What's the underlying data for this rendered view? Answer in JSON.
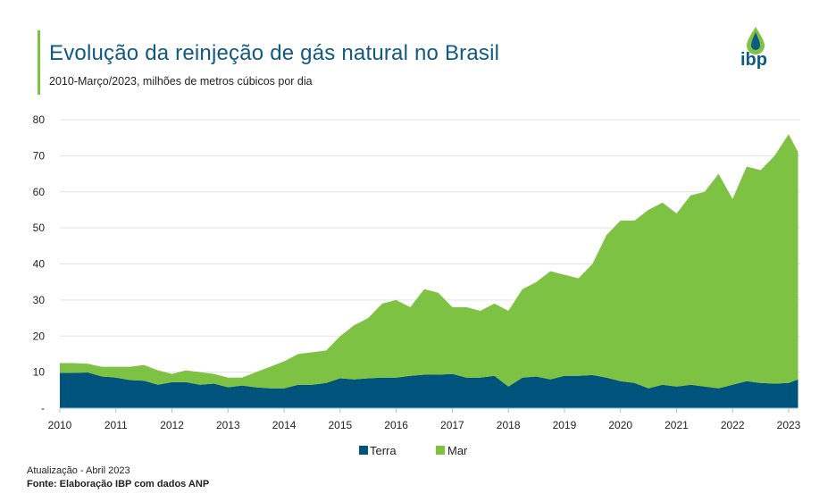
{
  "header": {
    "title": "Evolução da reinjeção de gás natural no Brasil",
    "subtitle": "2010-Março/2023, milhões de metros cúbicos por dia",
    "logo_text": "ibp"
  },
  "footer": {
    "update": "Atualização - Abril 2023",
    "source": "Fonte: Elaboração IBP com dados ANP"
  },
  "colors": {
    "terra": "#00537a",
    "mar": "#7dc242",
    "title": "#0f5a82",
    "accent": "#7dc242"
  },
  "chart_data": {
    "type": "area",
    "stacked": true,
    "title": "",
    "xlabel": "",
    "ylabel": "",
    "ylim": [
      0,
      80
    ],
    "yticks": [
      {
        "v": 0,
        "label": "-"
      },
      {
        "v": 10,
        "label": "10"
      },
      {
        "v": 20,
        "label": "20"
      },
      {
        "v": 30,
        "label": "30"
      },
      {
        "v": 40,
        "label": "40"
      },
      {
        "v": 50,
        "label": "50"
      },
      {
        "v": 60,
        "label": "60"
      },
      {
        "v": 70,
        "label": "70"
      },
      {
        "v": 80,
        "label": "80"
      }
    ],
    "xticks": [
      "2010",
      "2011",
      "2012",
      "2013",
      "2014",
      "2015",
      "2016",
      "2017",
      "2018",
      "2019",
      "2020",
      "2021",
      "2022",
      "2023"
    ],
    "grid": true,
    "legend": "bottom",
    "x": [
      "2010-01",
      "2010-04",
      "2010-07",
      "2010-10",
      "2011-01",
      "2011-04",
      "2011-07",
      "2011-10",
      "2012-01",
      "2012-04",
      "2012-07",
      "2012-10",
      "2013-01",
      "2013-04",
      "2013-07",
      "2013-10",
      "2014-01",
      "2014-04",
      "2014-07",
      "2014-10",
      "2015-01",
      "2015-04",
      "2015-07",
      "2015-10",
      "2016-01",
      "2016-04",
      "2016-07",
      "2016-10",
      "2017-01",
      "2017-04",
      "2017-07",
      "2017-10",
      "2018-01",
      "2018-04",
      "2018-07",
      "2018-10",
      "2019-01",
      "2019-04",
      "2019-07",
      "2019-10",
      "2020-01",
      "2020-04",
      "2020-07",
      "2020-10",
      "2021-01",
      "2021-04",
      "2021-07",
      "2021-10",
      "2022-01",
      "2022-04",
      "2022-07",
      "2022-10",
      "2023-01",
      "2023-03"
    ],
    "series": [
      {
        "name": "Terra",
        "values": [
          9.8,
          9.8,
          9.9,
          8.8,
          8.5,
          7.8,
          7.6,
          6.5,
          7.2,
          7.2,
          6.5,
          6.8,
          5.8,
          6.3,
          5.8,
          5.5,
          5.5,
          6.5,
          6.5,
          7,
          8.3,
          8,
          8.3,
          8.5,
          8.5,
          9,
          9.3,
          9.3,
          9.5,
          8.5,
          8.5,
          9,
          6,
          8.5,
          8.8,
          8,
          9,
          9,
          9.2,
          8.5,
          7.5,
          7,
          5.5,
          6.5,
          6,
          6.5,
          6,
          5.5,
          6.5,
          7.5,
          7,
          6.8,
          7,
          8
        ]
      },
      {
        "name": "Mar",
        "values": [
          2.7,
          2.7,
          2.4,
          2.7,
          3.0,
          3.7,
          4.4,
          4.0,
          2.3,
          3.3,
          3.5,
          2.7,
          2.7,
          2.2,
          4.2,
          6.0,
          7.5,
          8.5,
          9.0,
          9.0,
          11.7,
          15.0,
          16.7,
          20.5,
          21.5,
          19.0,
          23.7,
          22.7,
          18.5,
          19.5,
          18.5,
          20.0,
          21.0,
          24.5,
          26.2,
          30.0,
          28.0,
          27.0,
          30.8,
          39.5,
          44.5,
          45.0,
          49.5,
          50.5,
          48.0,
          52.5,
          54.0,
          59.5,
          51.5,
          59.5,
          59.0,
          63.2,
          69,
          63
        ]
      }
    ]
  }
}
